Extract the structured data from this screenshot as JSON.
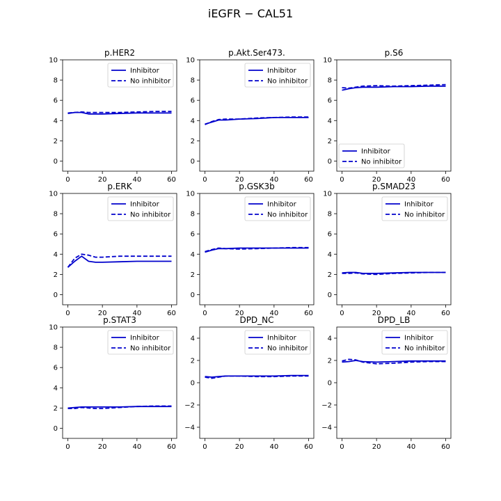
{
  "figure": {
    "title": "iEGFR − CAL51"
  },
  "colors": {
    "line": "#0000cc",
    "axis": "#000000",
    "text": "#000000"
  },
  "chart_data": [
    {
      "type": "line",
      "title": "p.HER2",
      "xlim": [
        -3,
        63
      ],
      "ylim": [
        -1,
        10
      ],
      "xticks": [
        "0",
        "20",
        "40",
        "60"
      ],
      "yticks": [
        "0",
        "2",
        "4",
        "6",
        "8",
        "10"
      ],
      "legend_position": "top-right",
      "series": [
        {
          "name": "Inhibitor",
          "style": "solid",
          "x": [
            0,
            4,
            8,
            12,
            20,
            30,
            40,
            50,
            60
          ],
          "y": [
            4.7,
            4.8,
            4.8,
            4.65,
            4.65,
            4.7,
            4.75,
            4.75,
            4.75
          ]
        },
        {
          "name": "No inhibitor",
          "style": "dashed",
          "x": [
            0,
            4,
            8,
            12,
            20,
            30,
            40,
            50,
            60
          ],
          "y": [
            4.75,
            4.8,
            4.85,
            4.8,
            4.8,
            4.8,
            4.85,
            4.9,
            4.9
          ]
        }
      ]
    },
    {
      "type": "line",
      "title": "p.Akt.Ser473.",
      "xlim": [
        -3,
        63
      ],
      "ylim": [
        -1,
        10
      ],
      "xticks": [
        "0",
        "20",
        "40",
        "60"
      ],
      "yticks": [
        "0",
        "2",
        "4",
        "6",
        "8",
        "10"
      ],
      "legend_position": "top-right",
      "series": [
        {
          "name": "Inhibitor",
          "style": "solid",
          "x": [
            0,
            4,
            8,
            12,
            20,
            30,
            40,
            50,
            60
          ],
          "y": [
            3.65,
            3.85,
            4.05,
            4.05,
            4.15,
            4.2,
            4.3,
            4.3,
            4.3
          ]
        },
        {
          "name": "No inhibitor",
          "style": "dashed",
          "x": [
            0,
            4,
            8,
            12,
            20,
            30,
            40,
            50,
            60
          ],
          "y": [
            3.6,
            3.9,
            4.1,
            4.15,
            4.15,
            4.25,
            4.3,
            4.35,
            4.35
          ]
        }
      ]
    },
    {
      "type": "line",
      "title": "p.S6",
      "xlim": [
        -3,
        63
      ],
      "ylim": [
        -1,
        10
      ],
      "xticks": [
        "0",
        "20",
        "40",
        "60"
      ],
      "yticks": [
        "0",
        "2",
        "4",
        "6",
        "8",
        "10"
      ],
      "legend_position": "bottom-left",
      "series": [
        {
          "name": "Inhibitor",
          "style": "solid",
          "x": [
            0,
            4,
            8,
            12,
            20,
            30,
            40,
            50,
            60
          ],
          "y": [
            7.0,
            7.15,
            7.25,
            7.3,
            7.3,
            7.35,
            7.35,
            7.4,
            7.4
          ]
        },
        {
          "name": "No inhibitor",
          "style": "dashed",
          "x": [
            0,
            4,
            8,
            12,
            20,
            30,
            40,
            50,
            60
          ],
          "y": [
            7.25,
            7.2,
            7.3,
            7.4,
            7.45,
            7.4,
            7.45,
            7.5,
            7.55
          ]
        }
      ]
    },
    {
      "type": "line",
      "title": "p.ERK",
      "xlim": [
        -3,
        63
      ],
      "ylim": [
        -1,
        10
      ],
      "xticks": [
        "0",
        "20",
        "40",
        "60"
      ],
      "yticks": [
        "0",
        "2",
        "4",
        "6",
        "8",
        "10"
      ],
      "legend_position": "top-right",
      "series": [
        {
          "name": "Inhibitor",
          "style": "solid",
          "x": [
            0,
            4,
            8,
            12,
            16,
            20,
            30,
            40,
            50,
            60
          ],
          "y": [
            2.7,
            3.3,
            3.8,
            3.3,
            3.2,
            3.2,
            3.25,
            3.3,
            3.3,
            3.3
          ]
        },
        {
          "name": "No inhibitor",
          "style": "dashed",
          "x": [
            0,
            4,
            8,
            12,
            16,
            20,
            30,
            40,
            50,
            60
          ],
          "y": [
            2.7,
            3.6,
            4.0,
            3.9,
            3.7,
            3.7,
            3.8,
            3.8,
            3.8,
            3.8
          ]
        }
      ]
    },
    {
      "type": "line",
      "title": "p.GSK3b",
      "xlim": [
        -3,
        63
      ],
      "ylim": [
        -1,
        10
      ],
      "xticks": [
        "0",
        "20",
        "40",
        "60"
      ],
      "yticks": [
        "0",
        "2",
        "4",
        "6",
        "8",
        "10"
      ],
      "legend_position": "top-right",
      "series": [
        {
          "name": "Inhibitor",
          "style": "solid",
          "x": [
            0,
            4,
            8,
            12,
            20,
            30,
            40,
            50,
            60
          ],
          "y": [
            4.2,
            4.4,
            4.55,
            4.55,
            4.6,
            4.6,
            4.6,
            4.6,
            4.6
          ]
        },
        {
          "name": "No inhibitor",
          "style": "dashed",
          "x": [
            0,
            4,
            8,
            12,
            20,
            30,
            40,
            50,
            60
          ],
          "y": [
            4.25,
            4.45,
            4.6,
            4.55,
            4.5,
            4.55,
            4.6,
            4.65,
            4.65
          ]
        }
      ]
    },
    {
      "type": "line",
      "title": "p.SMAD23",
      "xlim": [
        -3,
        63
      ],
      "ylim": [
        -1,
        10
      ],
      "xticks": [
        "0",
        "20",
        "40",
        "60"
      ],
      "yticks": [
        "0",
        "2",
        "4",
        "6",
        "8",
        "10"
      ],
      "legend_position": "top-right",
      "series": [
        {
          "name": "Inhibitor",
          "style": "solid",
          "x": [
            0,
            4,
            8,
            12,
            20,
            30,
            40,
            50,
            60
          ],
          "y": [
            2.15,
            2.2,
            2.2,
            2.1,
            2.1,
            2.15,
            2.2,
            2.2,
            2.2
          ]
        },
        {
          "name": "No inhibitor",
          "style": "dashed",
          "x": [
            0,
            4,
            8,
            12,
            20,
            30,
            40,
            50,
            60
          ],
          "y": [
            2.1,
            2.1,
            2.15,
            2.05,
            2.0,
            2.1,
            2.15,
            2.2,
            2.2
          ]
        }
      ]
    },
    {
      "type": "line",
      "title": "p.STAT3",
      "xlim": [
        -3,
        63
      ],
      "ylim": [
        -1,
        10
      ],
      "xticks": [
        "0",
        "20",
        "40",
        "60"
      ],
      "yticks": [
        "0",
        "2",
        "4",
        "6",
        "8",
        "10"
      ],
      "legend_position": "top-right",
      "series": [
        {
          "name": "Inhibitor",
          "style": "solid",
          "x": [
            0,
            4,
            8,
            12,
            20,
            30,
            40,
            50,
            60
          ],
          "y": [
            2.0,
            2.05,
            2.1,
            2.1,
            2.1,
            2.1,
            2.15,
            2.15,
            2.15
          ]
        },
        {
          "name": "No inhibitor",
          "style": "dashed",
          "x": [
            0,
            4,
            8,
            12,
            16,
            20,
            30,
            40,
            50,
            60
          ],
          "y": [
            1.95,
            1.95,
            2.05,
            2.0,
            1.95,
            1.95,
            2.05,
            2.15,
            2.2,
            2.2
          ]
        }
      ]
    },
    {
      "type": "line",
      "title": "DPD_NC",
      "xlim": [
        -3,
        63
      ],
      "ylim": [
        -5,
        5
      ],
      "xticks": [
        "0",
        "20",
        "40",
        "60"
      ],
      "yticks": [
        "−4",
        "−2",
        "0",
        "2",
        "4"
      ],
      "legend_position": "top-right",
      "series": [
        {
          "name": "Inhibitor",
          "style": "solid",
          "x": [
            0,
            4,
            8,
            12,
            20,
            30,
            40,
            50,
            60
          ],
          "y": [
            0.55,
            0.5,
            0.55,
            0.6,
            0.6,
            0.6,
            0.6,
            0.65,
            0.65
          ]
        },
        {
          "name": "No inhibitor",
          "style": "dashed",
          "x": [
            0,
            4,
            8,
            12,
            20,
            30,
            40,
            50,
            60
          ],
          "y": [
            0.5,
            0.4,
            0.5,
            0.6,
            0.6,
            0.55,
            0.55,
            0.6,
            0.6
          ]
        }
      ]
    },
    {
      "type": "line",
      "title": "DPD_LB",
      "xlim": [
        -3,
        63
      ],
      "ylim": [
        -5,
        5
      ],
      "xticks": [
        "0",
        "20",
        "40",
        "60"
      ],
      "yticks": [
        "−4",
        "−2",
        "0",
        "2",
        "4"
      ],
      "legend_position": "top-right",
      "series": [
        {
          "name": "Inhibitor",
          "style": "solid",
          "x": [
            0,
            4,
            8,
            12,
            20,
            30,
            40,
            50,
            60
          ],
          "y": [
            1.85,
            1.9,
            2.0,
            1.9,
            1.85,
            1.9,
            1.95,
            1.95,
            1.95
          ]
        },
        {
          "name": "No inhibitor",
          "style": "dashed",
          "x": [
            0,
            4,
            8,
            12,
            20,
            30,
            40,
            50,
            60
          ],
          "y": [
            1.95,
            2.1,
            2.05,
            1.85,
            1.7,
            1.75,
            1.85,
            1.9,
            1.9
          ]
        }
      ]
    }
  ]
}
